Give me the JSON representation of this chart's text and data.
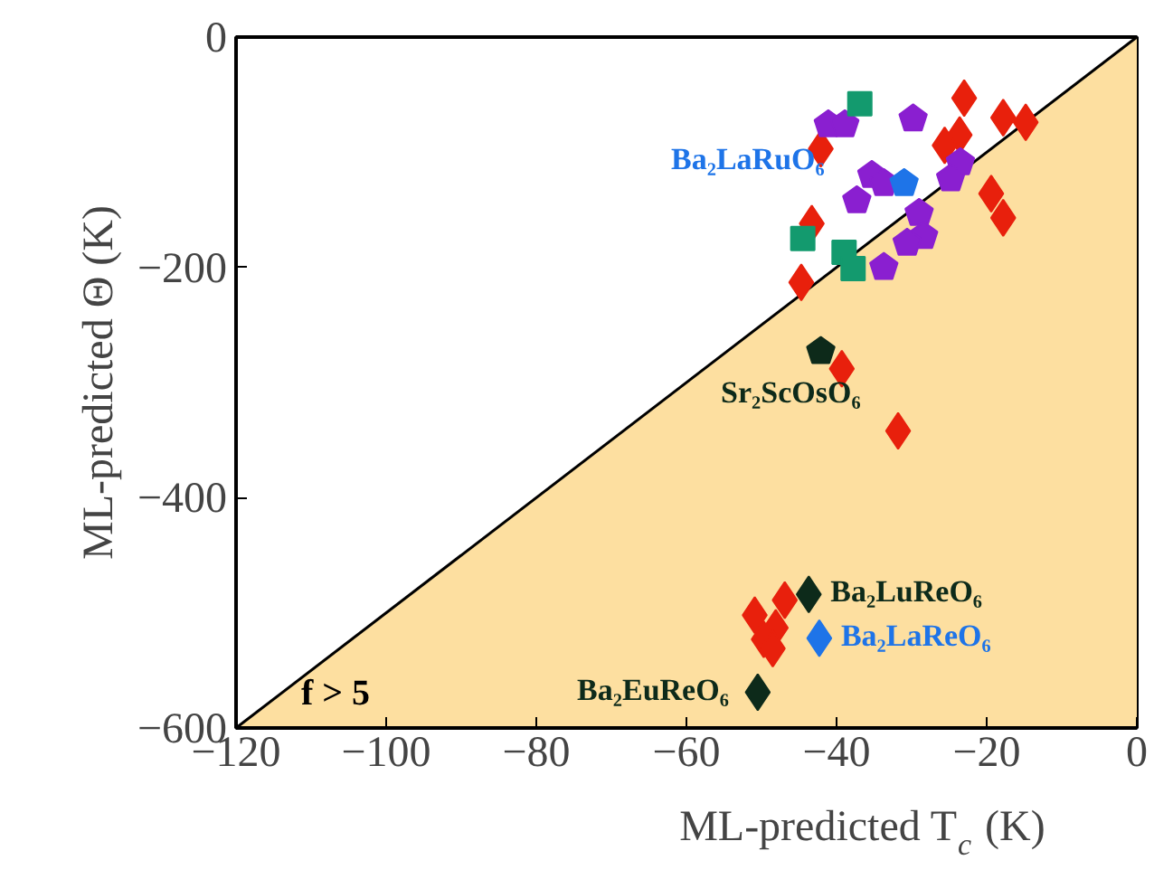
{
  "chart_data": {
    "type": "scatter",
    "xlabel": "ML-predicted T$_{c}$ (K)",
    "ylabel": "ML-predicted Θ (K)",
    "xlim": [
      -120,
      0
    ],
    "ylim": [
      -600,
      0
    ],
    "xticks": [
      -120,
      -100,
      -80,
      -60,
      -40,
      -20,
      0
    ],
    "yticks": [
      -600,
      -400,
      -200,
      0
    ],
    "grid": false,
    "series": [
      {
        "type": "area",
        "color": "#fddfa0",
        "x": [
          -120,
          0
        ],
        "values": [
          -600,
          0
        ]
      },
      {
        "color": "#e8200c",
        "marker": "diamond",
        "x": [
          -23.0,
          -17.8,
          -14.8,
          -42.1,
          -23.6,
          -25.6,
          -19.4,
          -17.8,
          -43.3,
          -44.7,
          -39.3,
          -31.8,
          -46.9,
          -50.9,
          -48.1,
          -49.7,
          -48.5
        ],
        "values": [
          -53,
          -70,
          -74,
          -97,
          -85,
          -94,
          -136,
          -157,
          -162,
          -213,
          -288,
          -342,
          -489,
          -502,
          -513,
          -523,
          -531
        ]
      },
      {
        "color": "#8a1fd0",
        "x": [
          -41.1,
          -38.9,
          -29.8,
          -35.3,
          -33.7,
          -37.3,
          -23.5,
          -24.8,
          -29.0,
          -28.4,
          -30.6,
          -33.7
        ],
        "values": [
          -76,
          -76,
          -71,
          -120,
          -127,
          -142,
          -109,
          -123,
          -153,
          -173,
          -179,
          -200
        ]
      },
      {
        "color": "#139a6e",
        "marker": "square",
        "x": [
          -36.9,
          -44.5,
          -39.0,
          -37.8
        ],
        "values": [
          -58,
          -175,
          -187,
          -201
        ]
      },
      {
        "color": "#1e74e8",
        "x": [
          -31.0
        ],
        "values": [
          -127
        ]
      },
      {
        "color": "#1e74e8",
        "marker": "diamond",
        "x": [
          -42.3
        ],
        "values": [
          -522
        ]
      },
      {
        "color": "#0d2a1a",
        "x": [
          -42.1
        ],
        "values": [
          -273
        ]
      },
      {
        "color": "#0d2a1a",
        "marker": "diamond",
        "x": [
          -43.7,
          -50.5
        ],
        "values": [
          -484,
          -569
        ]
      }
    ],
    "annotations": [
      {
        "text": "Ba₂LaRuO₆",
        "x": -31.0,
        "y": -127
      },
      {
        "text": "Sr₂ScOsO₆",
        "x": -42.1,
        "y": -273
      },
      {
        "text": "Ba₂LuReO₆",
        "x": -43.7,
        "y": -484
      },
      {
        "text": "Ba₂LaReO₆",
        "x": -42.3,
        "y": -522
      },
      {
        "text": "Ba₂EuReO₆",
        "x": -50.5,
        "y": -569
      },
      "f > 5"
    ]
  }
}
